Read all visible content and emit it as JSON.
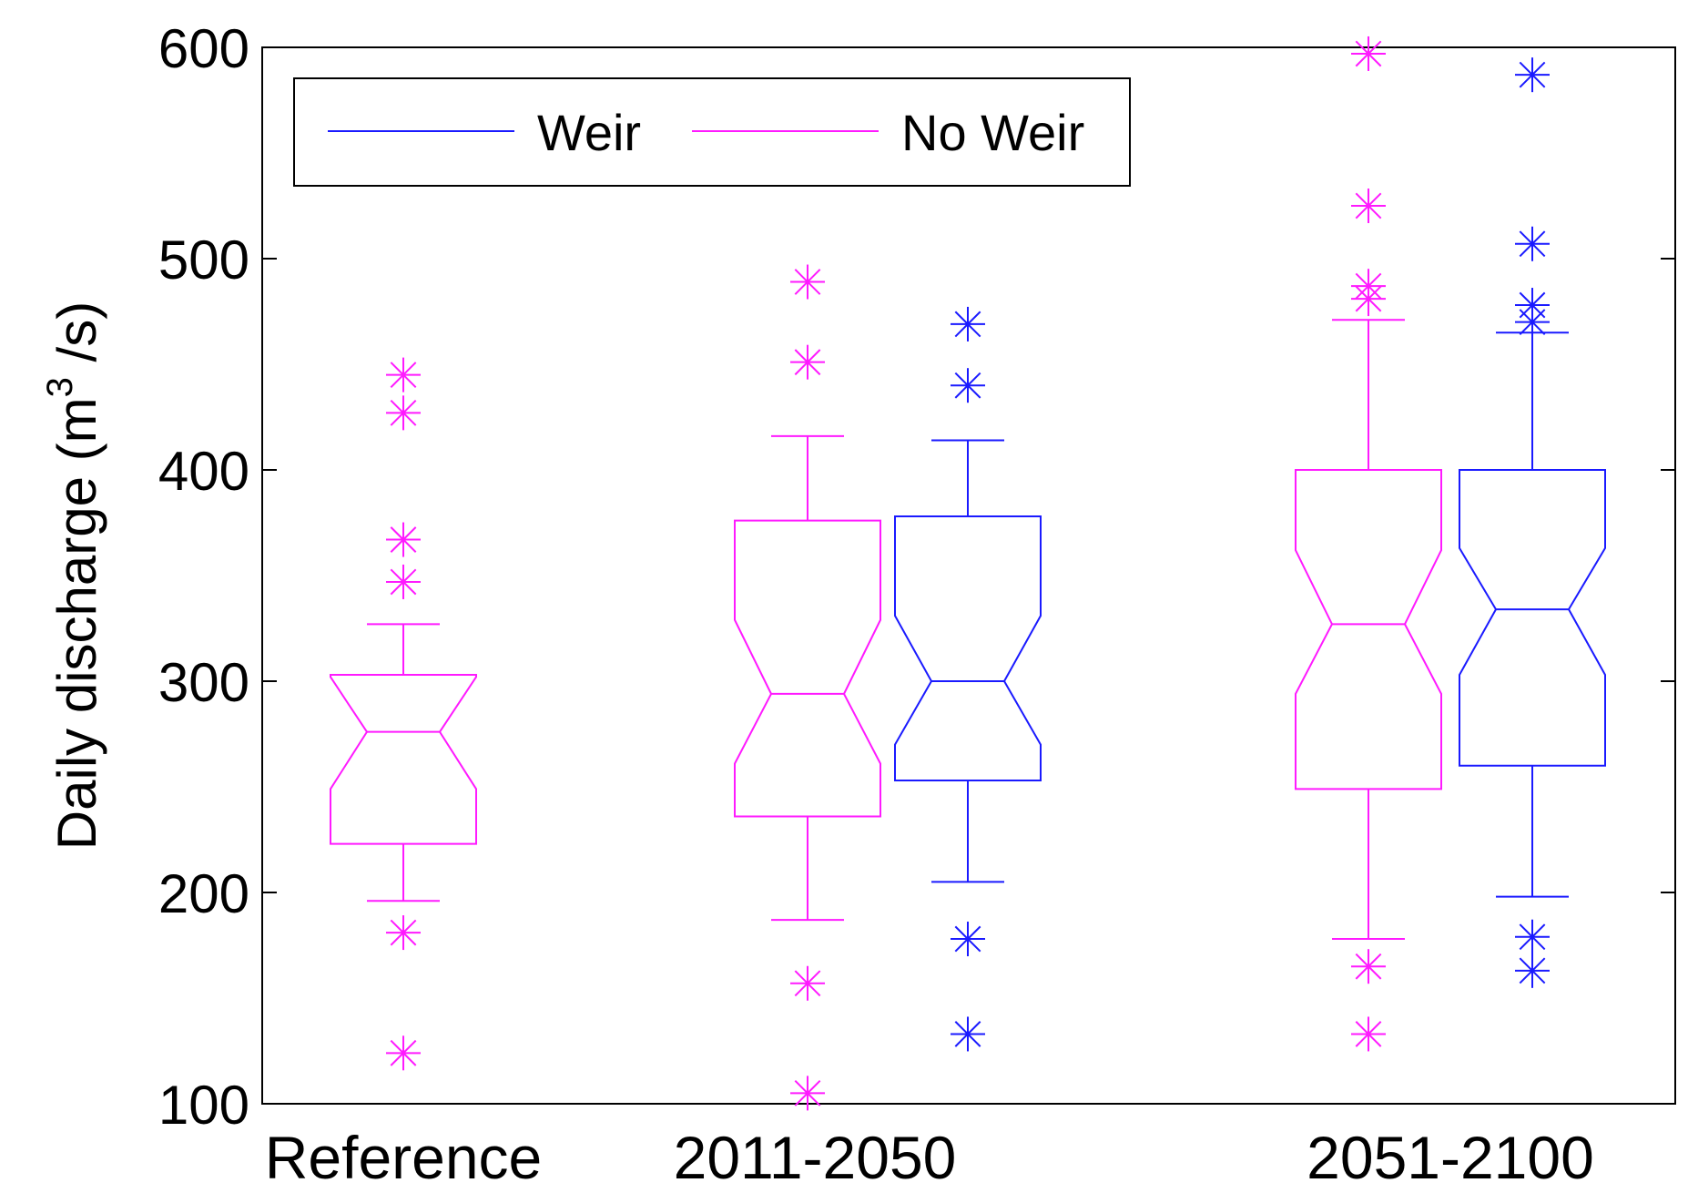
{
  "chart_data": {
    "type": "boxplot",
    "notched": true,
    "ylabel_prefix": "Daily discharge (m",
    "ylabel_sup": "3",
    "ylabel_suffix": " /s)",
    "ylim": [
      100,
      600
    ],
    "yticks": [
      100,
      200,
      300,
      400,
      500,
      600
    ],
    "categories": [
      "Reference",
      "2011-2050",
      "2051-2100"
    ],
    "legend": [
      {
        "name": "Weir",
        "color": "#1a1aff"
      },
      {
        "name": "No Weir",
        "color": "#ff1aff"
      }
    ],
    "legend_position": "top-left",
    "grid": false,
    "boxes": [
      {
        "category": "Reference",
        "series": "No Weir",
        "whisker_low": 196,
        "q1": 223,
        "median": 276,
        "q3": 303,
        "whisker_high": 327,
        "notch_low": 249,
        "notch_high": 302,
        "outliers": [
          124,
          181,
          347,
          367,
          427,
          445
        ]
      },
      {
        "category": "2011-2050",
        "series": "No Weir",
        "whisker_low": 187,
        "q1": 236,
        "median": 294,
        "q3": 376,
        "whisker_high": 416,
        "notch_low": 261,
        "notch_high": 329,
        "outliers": [
          105,
          157,
          451,
          489
        ]
      },
      {
        "category": "2011-2050",
        "series": "Weir",
        "whisker_low": 205,
        "q1": 253,
        "median": 300,
        "q3": 378,
        "whisker_high": 414,
        "notch_low": 270,
        "notch_high": 331,
        "outliers": [
          133,
          178,
          440,
          469
        ]
      },
      {
        "category": "2051-2100",
        "series": "No Weir",
        "whisker_low": 178,
        "q1": 249,
        "median": 327,
        "q3": 400,
        "whisker_high": 471,
        "notch_low": 294,
        "notch_high": 362,
        "outliers": [
          133,
          165,
          481,
          487,
          525,
          597
        ]
      },
      {
        "category": "2051-2100",
        "series": "Weir",
        "whisker_low": 198,
        "q1": 260,
        "median": 334,
        "q3": 400,
        "whisker_high": 465,
        "notch_low": 303,
        "notch_high": 363,
        "outliers": [
          163,
          179,
          470,
          478,
          507,
          587
        ]
      }
    ]
  }
}
